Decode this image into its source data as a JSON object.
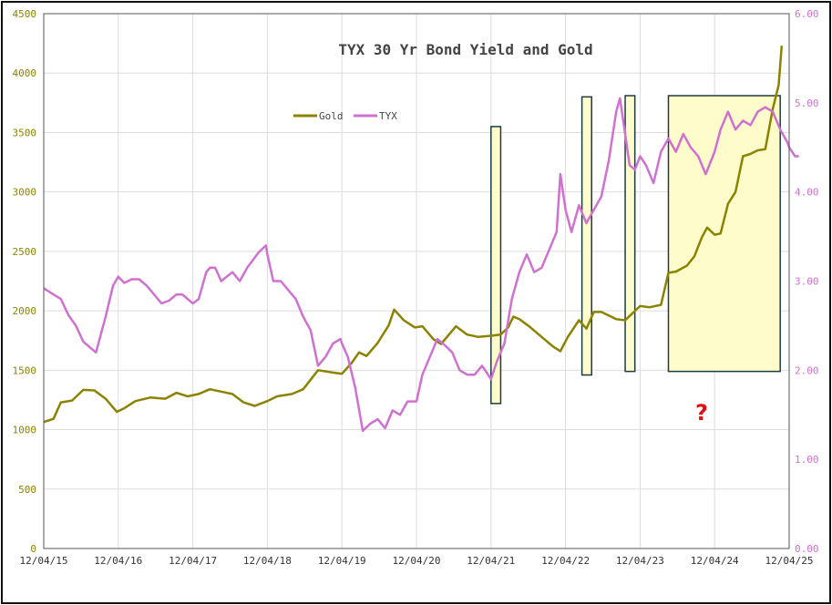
{
  "chart_data": {
    "type": "line",
    "title": "TYX 30 Yr Bond Yield and Gold",
    "annotation": "?",
    "grid": true,
    "legend_position": "top-center",
    "x_tick_labels": [
      "12/04/15",
      "12/04/16",
      "12/04/17",
      "12/04/18",
      "12/04/19",
      "12/04/20",
      "12/04/21",
      "12/04/22",
      "12/04/23",
      "12/04/24",
      "12/04/25"
    ],
    "y_left": {
      "ylim": [
        0,
        4500
      ],
      "ticks": [
        "0",
        "500",
        "1000",
        "1500",
        "2000",
        "2500",
        "3000",
        "3500",
        "4000",
        "4500"
      ],
      "color": "#8b8300"
    },
    "y_right": {
      "ylim": [
        0,
        6
      ],
      "ticks": [
        "0.00",
        "1.00",
        "2.00",
        "3.00",
        "4.00",
        "5.00",
        "6.00"
      ],
      "color": "#d070d0"
    },
    "series": [
      {
        "name": "Gold",
        "axis": "left",
        "color": "#8b8300",
        "points": [
          [
            2015.92,
            1065
          ],
          [
            2016.05,
            1090
          ],
          [
            2016.15,
            1230
          ],
          [
            2016.3,
            1245
          ],
          [
            2016.45,
            1335
          ],
          [
            2016.6,
            1330
          ],
          [
            2016.75,
            1260
          ],
          [
            2016.9,
            1150
          ],
          [
            2017.0,
            1180
          ],
          [
            2017.15,
            1240
          ],
          [
            2017.35,
            1270
          ],
          [
            2017.55,
            1260
          ],
          [
            2017.7,
            1310
          ],
          [
            2017.85,
            1280
          ],
          [
            2018.0,
            1300
          ],
          [
            2018.15,
            1340
          ],
          [
            2018.3,
            1320
          ],
          [
            2018.45,
            1300
          ],
          [
            2018.6,
            1230
          ],
          [
            2018.75,
            1200
          ],
          [
            2018.92,
            1240
          ],
          [
            2019.05,
            1280
          ],
          [
            2019.25,
            1300
          ],
          [
            2019.4,
            1340
          ],
          [
            2019.5,
            1420
          ],
          [
            2019.6,
            1500
          ],
          [
            2019.8,
            1480
          ],
          [
            2019.92,
            1470
          ],
          [
            2020.05,
            1560
          ],
          [
            2020.15,
            1650
          ],
          [
            2020.25,
            1620
          ],
          [
            2020.4,
            1730
          ],
          [
            2020.55,
            1880
          ],
          [
            2020.62,
            2010
          ],
          [
            2020.75,
            1920
          ],
          [
            2020.9,
            1860
          ],
          [
            2021.0,
            1870
          ],
          [
            2021.15,
            1760
          ],
          [
            2021.25,
            1720
          ],
          [
            2021.45,
            1870
          ],
          [
            2021.6,
            1800
          ],
          [
            2021.75,
            1780
          ],
          [
            2021.92,
            1790
          ],
          [
            2022.05,
            1800
          ],
          [
            2022.15,
            1860
          ],
          [
            2022.22,
            1950
          ],
          [
            2022.3,
            1930
          ],
          [
            2022.45,
            1860
          ],
          [
            2022.6,
            1780
          ],
          [
            2022.75,
            1700
          ],
          [
            2022.85,
            1660
          ],
          [
            2022.95,
            1780
          ],
          [
            2023.1,
            1920
          ],
          [
            2023.2,
            1850
          ],
          [
            2023.3,
            1990
          ],
          [
            2023.4,
            1990
          ],
          [
            2023.5,
            1960
          ],
          [
            2023.6,
            1930
          ],
          [
            2023.72,
            1920
          ],
          [
            2023.82,
            1980
          ],
          [
            2023.92,
            2040
          ],
          [
            2024.05,
            2030
          ],
          [
            2024.2,
            2050
          ],
          [
            2024.3,
            2320
          ],
          [
            2024.4,
            2330
          ],
          [
            2024.55,
            2380
          ],
          [
            2024.65,
            2460
          ],
          [
            2024.75,
            2620
          ],
          [
            2024.82,
            2700
          ],
          [
            2024.92,
            2640
          ],
          [
            2025.0,
            2650
          ],
          [
            2025.1,
            2900
          ],
          [
            2025.2,
            3000
          ],
          [
            2025.3,
            3300
          ],
          [
            2025.4,
            3320
          ],
          [
            2025.5,
            3350
          ],
          [
            2025.6,
            3360
          ],
          [
            2025.7,
            3700
          ],
          [
            2025.78,
            3900
          ],
          [
            2025.82,
            4230
          ]
        ]
      },
      {
        "name": "TYX",
        "axis": "right",
        "color": "#d070d0",
        "points": [
          [
            2015.92,
            2.92
          ],
          [
            2016.05,
            2.85
          ],
          [
            2016.15,
            2.8
          ],
          [
            2016.25,
            2.62
          ],
          [
            2016.35,
            2.5
          ],
          [
            2016.45,
            2.32
          ],
          [
            2016.55,
            2.25
          ],
          [
            2016.62,
            2.2
          ],
          [
            2016.75,
            2.6
          ],
          [
            2016.85,
            2.95
          ],
          [
            2016.92,
            3.05
          ],
          [
            2017.0,
            2.98
          ],
          [
            2017.1,
            3.02
          ],
          [
            2017.2,
            3.02
          ],
          [
            2017.3,
            2.95
          ],
          [
            2017.4,
            2.85
          ],
          [
            2017.5,
            2.75
          ],
          [
            2017.6,
            2.78
          ],
          [
            2017.7,
            2.85
          ],
          [
            2017.78,
            2.85
          ],
          [
            2017.85,
            2.8
          ],
          [
            2017.92,
            2.75
          ],
          [
            2018.0,
            2.8
          ],
          [
            2018.1,
            3.1
          ],
          [
            2018.15,
            3.15
          ],
          [
            2018.22,
            3.15
          ],
          [
            2018.3,
            3.0
          ],
          [
            2018.45,
            3.1
          ],
          [
            2018.55,
            3.0
          ],
          [
            2018.65,
            3.15
          ],
          [
            2018.8,
            3.32
          ],
          [
            2018.9,
            3.4
          ],
          [
            2018.92,
            3.3
          ],
          [
            2019.0,
            3.0
          ],
          [
            2019.1,
            3.0
          ],
          [
            2019.2,
            2.9
          ],
          [
            2019.3,
            2.8
          ],
          [
            2019.4,
            2.6
          ],
          [
            2019.5,
            2.45
          ],
          [
            2019.6,
            2.05
          ],
          [
            2019.7,
            2.15
          ],
          [
            2019.8,
            2.3
          ],
          [
            2019.9,
            2.35
          ],
          [
            2019.92,
            2.3
          ],
          [
            2020.0,
            2.15
          ],
          [
            2020.1,
            1.8
          ],
          [
            2020.2,
            1.32
          ],
          [
            2020.3,
            1.4
          ],
          [
            2020.4,
            1.45
          ],
          [
            2020.5,
            1.35
          ],
          [
            2020.6,
            1.55
          ],
          [
            2020.7,
            1.5
          ],
          [
            2020.8,
            1.65
          ],
          [
            2020.92,
            1.65
          ],
          [
            2021.0,
            1.95
          ],
          [
            2021.1,
            2.15
          ],
          [
            2021.2,
            2.35
          ],
          [
            2021.3,
            2.28
          ],
          [
            2021.4,
            2.2
          ],
          [
            2021.5,
            2.0
          ],
          [
            2021.6,
            1.95
          ],
          [
            2021.7,
            1.95
          ],
          [
            2021.8,
            2.05
          ],
          [
            2021.92,
            1.9
          ],
          [
            2022.0,
            2.1
          ],
          [
            2022.1,
            2.3
          ],
          [
            2022.2,
            2.8
          ],
          [
            2022.3,
            3.1
          ],
          [
            2022.4,
            3.3
          ],
          [
            2022.5,
            3.1
          ],
          [
            2022.6,
            3.15
          ],
          [
            2022.7,
            3.35
          ],
          [
            2022.8,
            3.55
          ],
          [
            2022.85,
            4.2
          ],
          [
            2022.92,
            3.8
          ],
          [
            2023.0,
            3.55
          ],
          [
            2023.1,
            3.85
          ],
          [
            2023.2,
            3.65
          ],
          [
            2023.3,
            3.8
          ],
          [
            2023.4,
            3.95
          ],
          [
            2023.5,
            4.35
          ],
          [
            2023.6,
            4.9
          ],
          [
            2023.65,
            5.05
          ],
          [
            2023.72,
            4.65
          ],
          [
            2023.78,
            4.3
          ],
          [
            2023.85,
            4.25
          ],
          [
            2023.92,
            4.4
          ],
          [
            2024.0,
            4.3
          ],
          [
            2024.1,
            4.1
          ],
          [
            2024.2,
            4.45
          ],
          [
            2024.3,
            4.6
          ],
          [
            2024.4,
            4.45
          ],
          [
            2024.5,
            4.65
          ],
          [
            2024.6,
            4.5
          ],
          [
            2024.7,
            4.4
          ],
          [
            2024.8,
            4.2
          ],
          [
            2024.92,
            4.45
          ],
          [
            2025.0,
            4.7
          ],
          [
            2025.1,
            4.9
          ],
          [
            2025.2,
            4.7
          ],
          [
            2025.3,
            4.8
          ],
          [
            2025.4,
            4.75
          ],
          [
            2025.5,
            4.9
          ],
          [
            2025.6,
            4.95
          ],
          [
            2025.7,
            4.9
          ],
          [
            2025.8,
            4.7
          ],
          [
            2025.9,
            4.55
          ],
          [
            2025.92,
            4.5
          ],
          [
            2026.0,
            4.4
          ],
          [
            2026.05,
            4.4
          ]
        ]
      }
    ],
    "highlight_boxes": [
      {
        "x": [
          2021.92,
          2022.05
        ],
        "y_left": [
          1220,
          3550
        ]
      },
      {
        "x": [
          2023.14,
          2023.27
        ],
        "y_left": [
          1460,
          3800
        ]
      },
      {
        "x": [
          2023.72,
          2023.85
        ],
        "y_left": [
          1490,
          3810
        ]
      },
      {
        "x": [
          2024.3,
          2025.8
        ],
        "y_left": [
          1490,
          3810
        ]
      }
    ]
  }
}
